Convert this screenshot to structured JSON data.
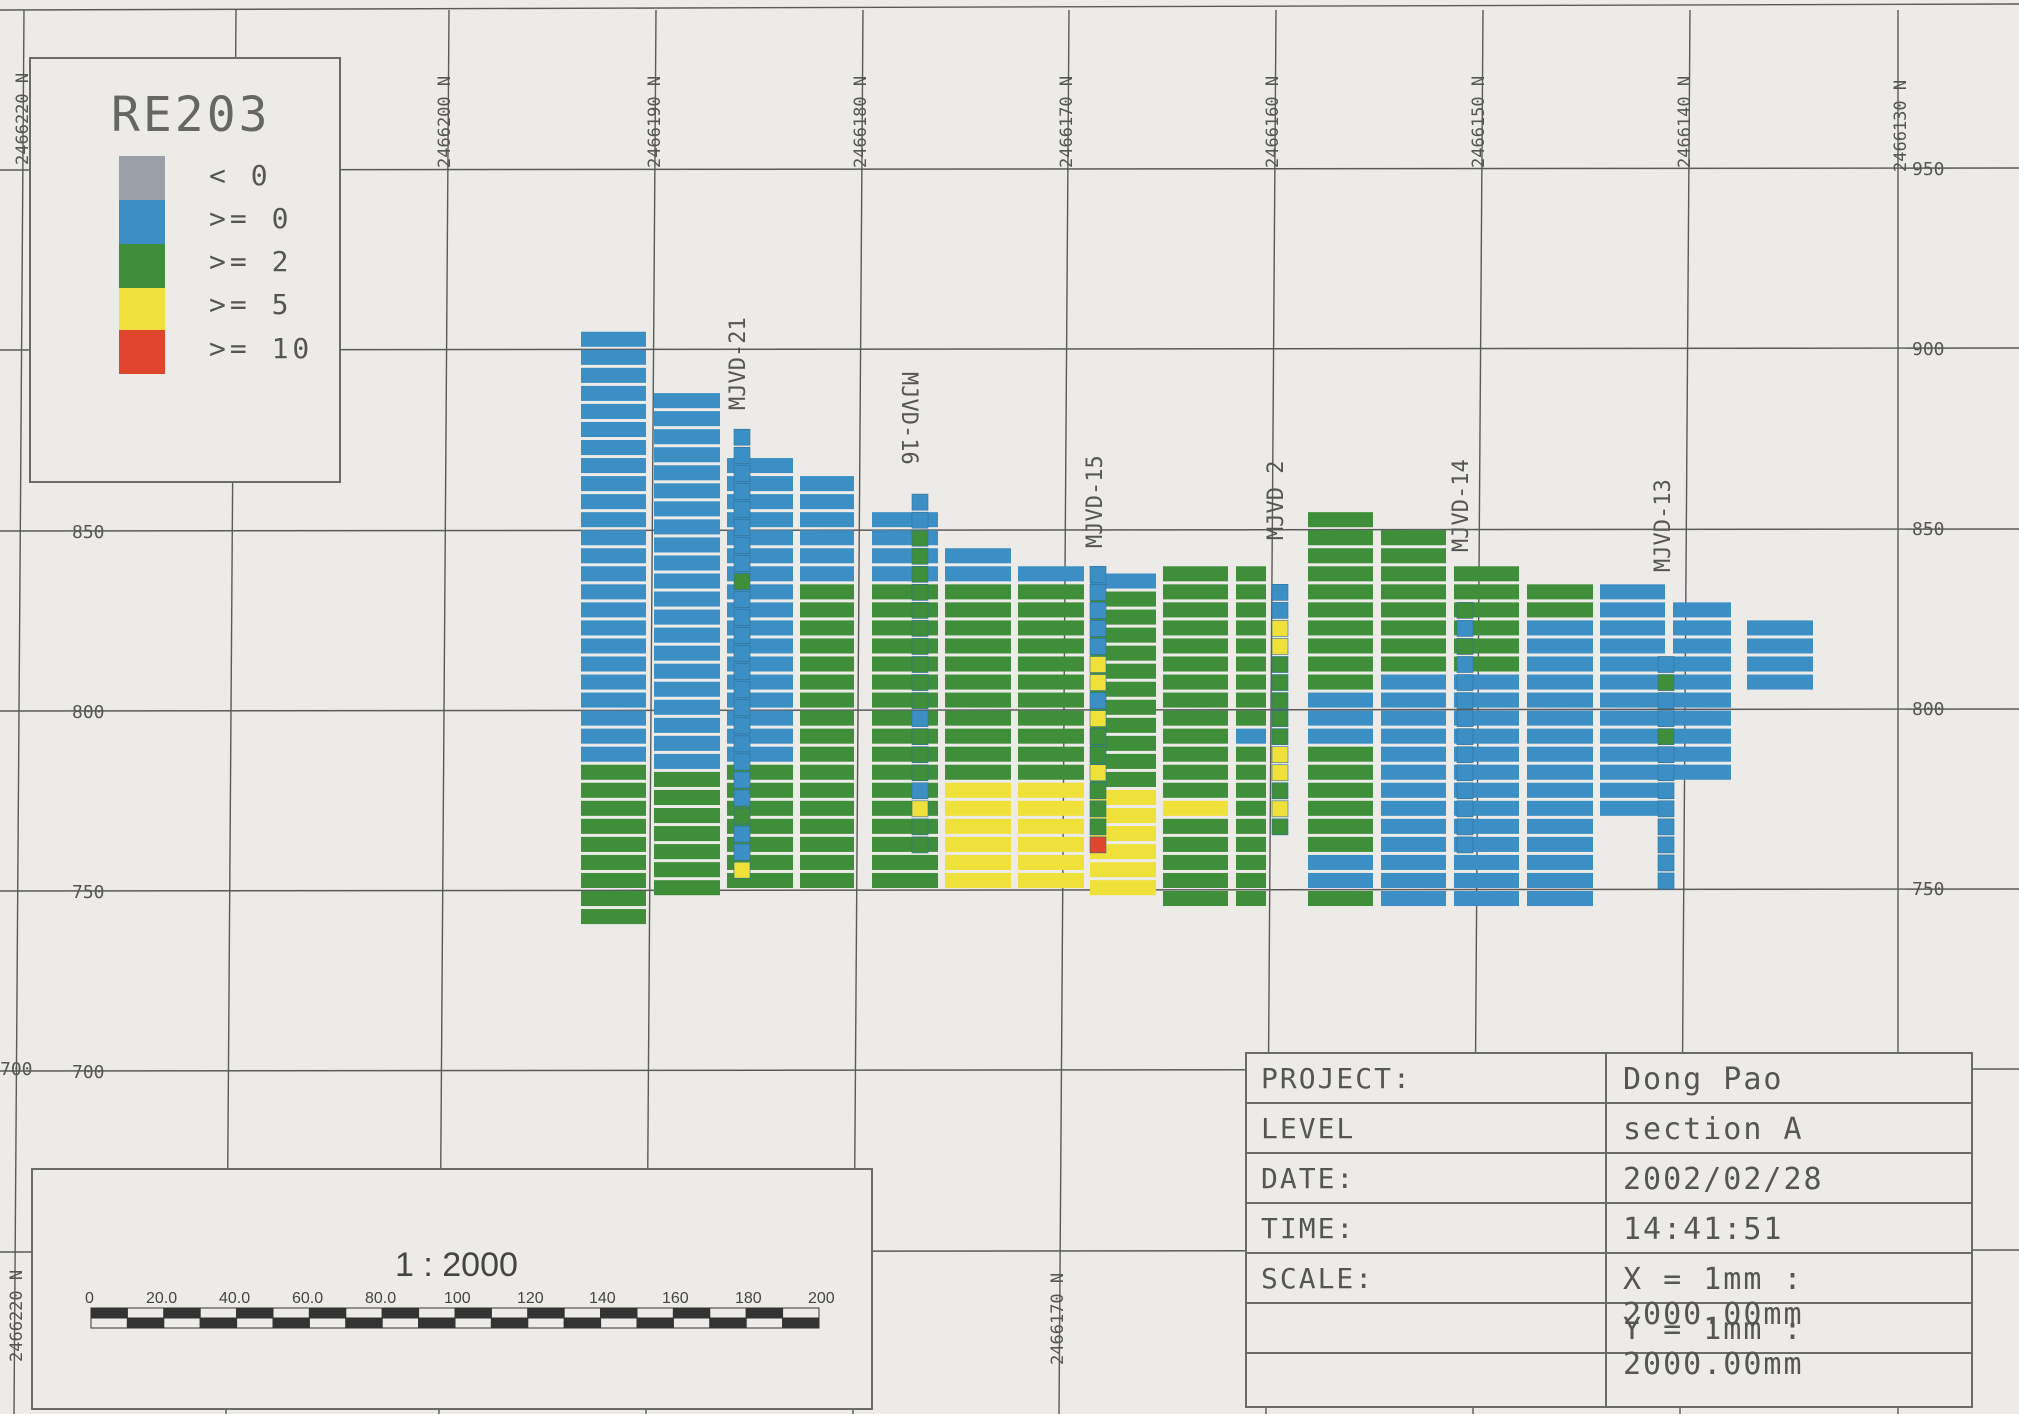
{
  "legend": {
    "title": "RE203",
    "items": [
      {
        "label": "< 0",
        "color": "#9aa0a6"
      },
      {
        "label": ">= 0",
        "color": "#3c8fc4"
      },
      {
        "label": ">= 2",
        "color": "#3f8f3a"
      },
      {
        "label": ">= 5",
        "color": "#f0e03a"
      },
      {
        "label": ">= 10",
        "color": "#e0452e"
      }
    ]
  },
  "northings_top": [
    "2466220 N",
    "2466200 N",
    "2466190 N",
    "2466180 N",
    "2466170 N",
    "2466160 N",
    "2466150 N",
    "2466140 N",
    "2466130 N"
  ],
  "northings_bottom": [
    "2466220 N",
    "2466170 N"
  ],
  "elevation_labels": [
    "950",
    "900",
    "850",
    "800",
    "750",
    "700"
  ],
  "drillholes": [
    "MJVD-21",
    "MJVD-16",
    "MJVD-15",
    "MJVD 2",
    "MJVD-14",
    "MJVD-13"
  ],
  "scale": {
    "ratio": "1 : 2000",
    "ticks": [
      "0",
      "20.0",
      "40.0",
      "60.0",
      "80.0",
      "100",
      "120",
      "140",
      "160",
      "180",
      "200"
    ]
  },
  "title_block": {
    "project_label": "PROJECT:",
    "project_value": "Dong Pao",
    "level_label": "LEVEL",
    "level_value": "section A",
    "date_label": "DATE:",
    "date_value": "2002/02/28",
    "time_label": "TIME:",
    "time_value": "14:41:51",
    "scale_label": "SCALE:",
    "scale_x": "X = 1mm : 2000.00mm",
    "scale_y": "Y = 1mm : 2000.00mm"
  },
  "colors": {
    "blue": "#3c8fc4",
    "green": "#3f8f3a",
    "yellow": "#f0e03a",
    "red": "#e0452e",
    "grid": "#5a5a5a"
  }
}
